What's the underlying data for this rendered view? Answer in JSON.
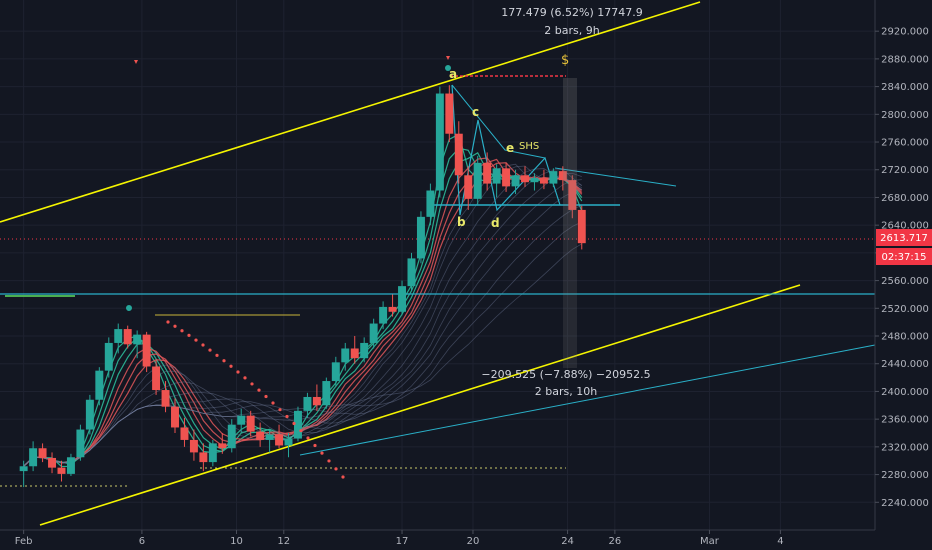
{
  "chart_data": {
    "type": "candlestick",
    "y_ticks": [
      2240,
      2280,
      2320,
      2360,
      2400,
      2440,
      2480,
      2520,
      2560,
      2600,
      2640,
      2680,
      2720,
      2760,
      2800,
      2840,
      2880,
      2920
    ],
    "y_tick_labels": [
      "2240.000",
      "2280.000",
      "2320.000",
      "2360.000",
      "2400.000",
      "2440.000",
      "2480.000",
      "2520.000",
      "2560.000",
      "2600.000",
      "2640.000",
      "2680.000",
      "2720.000",
      "2760.000",
      "2800.000",
      "2840.000",
      "2880.000",
      "2920.000"
    ],
    "ylim": [
      2200,
      2965
    ],
    "x_ticks": [
      {
        "label": "Feb",
        "day": 1
      },
      {
        "label": "6",
        "day": 6
      },
      {
        "label": "10",
        "day": 10
      },
      {
        "label": "12",
        "day": 12
      },
      {
        "label": "17",
        "day": 17
      },
      {
        "label": "20",
        "day": 20
      },
      {
        "label": "24",
        "day": 24
      },
      {
        "label": "26",
        "day": 26
      },
      {
        "label": "Mar",
        "day": 30
      },
      {
        "label": "4",
        "day": 33
      }
    ],
    "xlim": [
      0,
      37
    ],
    "last_price": "2613.717",
    "countdown": "02:37:15",
    "last_price_value": 2613.717,
    "measure_up": {
      "text1": "177.479 (6.52%) 17747.9",
      "text2": "2 bars, 9h"
    },
    "measure_down": {
      "text1": "−209.525 (−7.88%) −20952.5",
      "text2": "2 bars, 10h"
    },
    "wave_labels": [
      "a",
      "b",
      "c",
      "d",
      "e",
      "SHS",
      "$"
    ],
    "candles": [
      [
        1,
        2285,
        2300,
        2262,
        2292
      ],
      [
        1.4,
        2292,
        2328,
        2285,
        2318
      ],
      [
        1.8,
        2318,
        2325,
        2298,
        2304
      ],
      [
        2.2,
        2304,
        2312,
        2282,
        2290
      ],
      [
        2.6,
        2290,
        2300,
        2270,
        2281
      ],
      [
        3.0,
        2281,
        2310,
        2278,
        2305
      ],
      [
        3.4,
        2305,
        2352,
        2300,
        2345
      ],
      [
        3.8,
        2345,
        2395,
        2338,
        2388
      ],
      [
        4.2,
        2388,
        2435,
        2380,
        2430
      ],
      [
        4.6,
        2430,
        2478,
        2420,
        2470
      ],
      [
        5.0,
        2470,
        2498,
        2455,
        2490
      ],
      [
        5.4,
        2490,
        2495,
        2462,
        2468
      ],
      [
        5.8,
        2468,
        2488,
        2448,
        2482
      ],
      [
        6.2,
        2482,
        2486,
        2428,
        2436
      ],
      [
        6.6,
        2436,
        2445,
        2395,
        2402
      ],
      [
        7.0,
        2402,
        2415,
        2370,
        2378
      ],
      [
        7.4,
        2378,
        2390,
        2340,
        2348
      ],
      [
        7.8,
        2348,
        2362,
        2320,
        2330
      ],
      [
        8.2,
        2330,
        2345,
        2300,
        2312
      ],
      [
        8.6,
        2312,
        2325,
        2285,
        2298
      ],
      [
        9.0,
        2298,
        2330,
        2292,
        2325
      ],
      [
        9.4,
        2325,
        2340,
        2310,
        2318
      ],
      [
        9.8,
        2318,
        2360,
        2312,
        2352
      ],
      [
        10.2,
        2352,
        2375,
        2340,
        2365
      ],
      [
        10.6,
        2365,
        2372,
        2335,
        2342
      ],
      [
        11.0,
        2342,
        2355,
        2320,
        2330
      ],
      [
        11.4,
        2330,
        2345,
        2312,
        2338
      ],
      [
        11.8,
        2338,
        2352,
        2318,
        2322
      ],
      [
        12.2,
        2322,
        2340,
        2305,
        2332
      ],
      [
        12.6,
        2332,
        2378,
        2328,
        2372
      ],
      [
        13.0,
        2372,
        2398,
        2362,
        2392
      ],
      [
        13.4,
        2392,
        2410,
        2372,
        2380
      ],
      [
        13.8,
        2380,
        2420,
        2375,
        2415
      ],
      [
        14.2,
        2415,
        2450,
        2408,
        2442
      ],
      [
        14.6,
        2442,
        2470,
        2430,
        2462
      ],
      [
        15.0,
        2462,
        2480,
        2440,
        2448
      ],
      [
        15.4,
        2448,
        2478,
        2442,
        2470
      ],
      [
        15.8,
        2470,
        2505,
        2462,
        2498
      ],
      [
        16.2,
        2498,
        2530,
        2490,
        2522
      ],
      [
        16.6,
        2522,
        2540,
        2508,
        2515
      ],
      [
        17.0,
        2515,
        2560,
        2510,
        2552
      ],
      [
        17.4,
        2552,
        2600,
        2545,
        2592
      ],
      [
        17.8,
        2592,
        2660,
        2585,
        2652
      ],
      [
        18.2,
        2652,
        2700,
        2640,
        2690
      ],
      [
        18.6,
        2690,
        2840,
        2680,
        2830
      ],
      [
        19.0,
        2830,
        2842,
        2760,
        2772
      ],
      [
        19.4,
        2772,
        2790,
        2700,
        2712
      ],
      [
        19.8,
        2712,
        2725,
        2662,
        2678
      ],
      [
        20.2,
        2678,
        2740,
        2670,
        2730
      ],
      [
        20.6,
        2730,
        2745,
        2690,
        2700
      ],
      [
        21.0,
        2700,
        2728,
        2680,
        2722
      ],
      [
        21.4,
        2722,
        2730,
        2688,
        2696
      ],
      [
        21.8,
        2696,
        2720,
        2685,
        2712
      ],
      [
        22.2,
        2712,
        2725,
        2695,
        2702
      ],
      [
        22.6,
        2702,
        2715,
        2690,
        2708
      ],
      [
        23.0,
        2708,
        2720,
        2692,
        2700
      ],
      [
        23.4,
        2700,
        2722,
        2695,
        2718
      ],
      [
        23.8,
        2718,
        2725,
        2690,
        2705
      ],
      [
        24.2,
        2705,
        2712,
        2650,
        2662
      ],
      [
        24.6,
        2662,
        2668,
        2605,
        2614
      ]
    ]
  }
}
